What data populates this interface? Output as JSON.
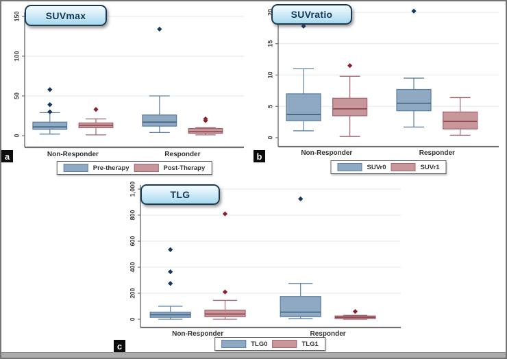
{
  "colors": {
    "blue": {
      "fill": "#8fa9c3",
      "stroke": "#5d80a2",
      "median": "#3f6583",
      "outlier": "#17375e"
    },
    "red": {
      "fill": "#c8979b",
      "stroke": "#a3646c",
      "median": "#8c4a52",
      "outlier": "#8e1f2d"
    },
    "title_box_border": "#1c3b52",
    "title_text": "#12355b",
    "axis": "#6f6f6f",
    "grid": "#dde9f1",
    "tick_label": "#404040",
    "category_label": "#2f2f2f",
    "frame": "#737373",
    "bottom_bar": "#acacac",
    "badge_bg": "#0c0c0c"
  },
  "chart_data": [
    {
      "type": "box",
      "panel_label": "a",
      "title": "SUVmax",
      "categories": [
        "Non-Responder",
        "Responder"
      ],
      "ylim": [
        0,
        150
      ],
      "yticks": [
        0,
        50,
        100,
        150
      ],
      "ytick_labels": [
        "0",
        "50",
        "100",
        "150"
      ],
      "grid": true,
      "legend_position": "bottom",
      "series": [
        {
          "name": "Pre-therapy",
          "color_key": "blue",
          "boxes": [
            {
              "category": "Non-Responder",
              "whisker_low": 2,
              "q1": 8,
              "median": 11,
              "q3": 17,
              "whisker_high": 29,
              "outliers": [
                30,
                39,
                58
              ]
            },
            {
              "category": "Responder",
              "whisker_low": 4,
              "q1": 12,
              "median": 17,
              "q3": 26,
              "whisker_high": 50,
              "outliers": [
                134
              ]
            }
          ]
        },
        {
          "name": "Post-Therapy",
          "color_key": "red",
          "boxes": [
            {
              "category": "Non-Responder",
              "whisker_low": 1,
              "q1": 10,
              "median": 13,
              "q3": 16,
              "whisker_high": 21,
              "outliers": [
                33
              ]
            },
            {
              "category": "Responder",
              "whisker_low": 1,
              "q1": 3,
              "median": 5,
              "q3": 9,
              "whisker_high": 10,
              "outliers": [
                19,
                21
              ]
            }
          ]
        }
      ]
    },
    {
      "type": "box",
      "panel_label": "b",
      "title": "SUVratio",
      "categories": [
        "Non-Responder",
        "Responder"
      ],
      "ylim": [
        0,
        20
      ],
      "yticks": [
        0,
        5,
        10,
        15,
        20
      ],
      "ytick_labels": [
        "0",
        "5",
        "10",
        "15",
        "20"
      ],
      "grid": true,
      "legend_position": "bottom",
      "series": [
        {
          "name": "SUVr0",
          "color_key": "blue",
          "boxes": [
            {
              "category": "Non-Responder",
              "whisker_low": 1.1,
              "q1": 2.7,
              "median": 3.7,
              "q3": 7.0,
              "whisker_high": 11.0,
              "outliers": [
                17.8
              ]
            },
            {
              "category": "Responder",
              "whisker_low": 1.7,
              "q1": 4.3,
              "median": 5.5,
              "q3": 7.7,
              "whisker_high": 9.5,
              "outliers": [
                20.2
              ]
            }
          ]
        },
        {
          "name": "SUVr1",
          "color_key": "red",
          "boxes": [
            {
              "category": "Non-Responder",
              "whisker_low": 0.2,
              "q1": 3.5,
              "median": 4.6,
              "q3": 6.3,
              "whisker_high": 9.8,
              "outliers": [
                11.5
              ]
            },
            {
              "category": "Responder",
              "whisker_low": 0.4,
              "q1": 1.4,
              "median": 2.6,
              "q3": 4.1,
              "whisker_high": 6.4,
              "outliers": []
            }
          ]
        }
      ]
    },
    {
      "type": "box",
      "panel_label": "c",
      "title": "TLG",
      "categories": [
        "Non-Responder",
        "Responder"
      ],
      "ylim": [
        0,
        1000
      ],
      "yticks": [
        0,
        200,
        400,
        600,
        800,
        1000
      ],
      "ytick_labels": [
        "0",
        "200",
        "400",
        "600",
        "800",
        "1,000"
      ],
      "grid": true,
      "legend_position": "bottom",
      "series": [
        {
          "name": "TLG0",
          "color_key": "blue",
          "boxes": [
            {
              "category": "Non-Responder",
              "whisker_low": 0,
              "q1": 15,
              "median": 35,
              "q3": 55,
              "whisker_high": 100,
              "outliers": [
                275,
                365,
                535
              ]
            },
            {
              "category": "Responder",
              "whisker_low": 5,
              "q1": 20,
              "median": 55,
              "q3": 175,
              "whisker_high": 275,
              "outliers": [
                925
              ]
            }
          ]
        },
        {
          "name": "TLG1",
          "color_key": "red",
          "boxes": [
            {
              "category": "Non-Responder",
              "whisker_low": 0,
              "q1": 20,
              "median": 40,
              "q3": 70,
              "whisker_high": 145,
              "outliers": [
                210,
                810
              ]
            },
            {
              "category": "Responder",
              "whisker_low": 0,
              "q1": 5,
              "median": 15,
              "q3": 25,
              "whisker_high": 30,
              "outliers": [
                60
              ]
            }
          ]
        }
      ]
    }
  ]
}
